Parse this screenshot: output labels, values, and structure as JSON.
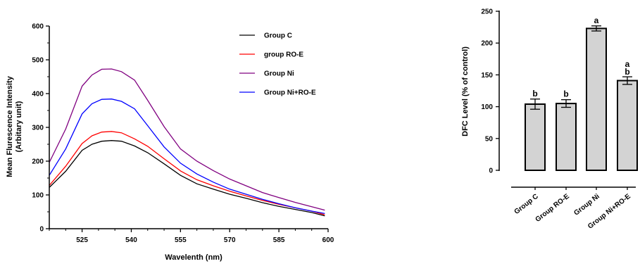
{
  "chart_data": [
    {
      "type": "line",
      "title": "",
      "xlabel": "Wavelenth (nm)",
      "ylabel_lines": [
        "Mean Flurescence Intensity",
        "(Arbitary unit)"
      ],
      "xlim": [
        515,
        600
      ],
      "ylim": [
        0,
        600
      ],
      "x_ticks": [
        525,
        540,
        555,
        570,
        585,
        600
      ],
      "y_ticks": [
        0,
        100,
        200,
        300,
        400,
        500,
        600
      ],
      "grid": false,
      "legend_position": "top-right",
      "x": [
        515,
        520,
        525,
        528,
        531,
        534,
        537,
        541,
        545,
        550,
        555,
        560,
        565,
        570,
        575,
        580,
        585,
        590,
        595,
        599
      ],
      "series": [
        {
          "name": "Group C",
          "color": "#000000",
          "values": [
            122,
            170,
            232,
            250,
            259,
            261,
            259,
            245,
            225,
            192,
            158,
            133,
            117,
            102,
            90,
            77,
            66,
            57,
            48,
            38
          ]
        },
        {
          "name": "group RO-E",
          "color": "#ff0000",
          "values": [
            128,
            185,
            252,
            275,
            286,
            288,
            284,
            266,
            244,
            207,
            171,
            145,
            127,
            111,
            97,
            84,
            72,
            62,
            52,
            41
          ]
        },
        {
          "name": "Group Ni",
          "color": "#800080",
          "values": [
            196,
            295,
            422,
            455,
            472,
            473,
            465,
            440,
            380,
            302,
            236,
            200,
            172,
            147,
            127,
            107,
            92,
            78,
            65,
            55
          ]
        },
        {
          "name": "Group Ni+RO-E",
          "color": "#0000ff",
          "values": [
            158,
            236,
            340,
            370,
            383,
            384,
            377,
            355,
            305,
            242,
            194,
            162,
            138,
            117,
            102,
            87,
            74,
            62,
            52,
            45
          ]
        }
      ]
    },
    {
      "type": "bar",
      "title": "",
      "xlabel": "",
      "ylabel": "DFC Level (% of control)",
      "ylim": [
        0,
        250
      ],
      "y_ticks": [
        0,
        50,
        100,
        150,
        200,
        250
      ],
      "bar_color": "#d3d3d3",
      "categories": [
        "Group C",
        "Group RO-E",
        "Group Ni",
        "Group Ni+RO-E"
      ],
      "values": [
        104,
        105,
        223,
        141
      ],
      "errors": [
        8,
        6,
        4,
        6
      ],
      "significance_letters": [
        "b",
        "b",
        "a",
        "a"
      ],
      "significance_letters_second": [
        "",
        "",
        "",
        "b"
      ]
    }
  ]
}
